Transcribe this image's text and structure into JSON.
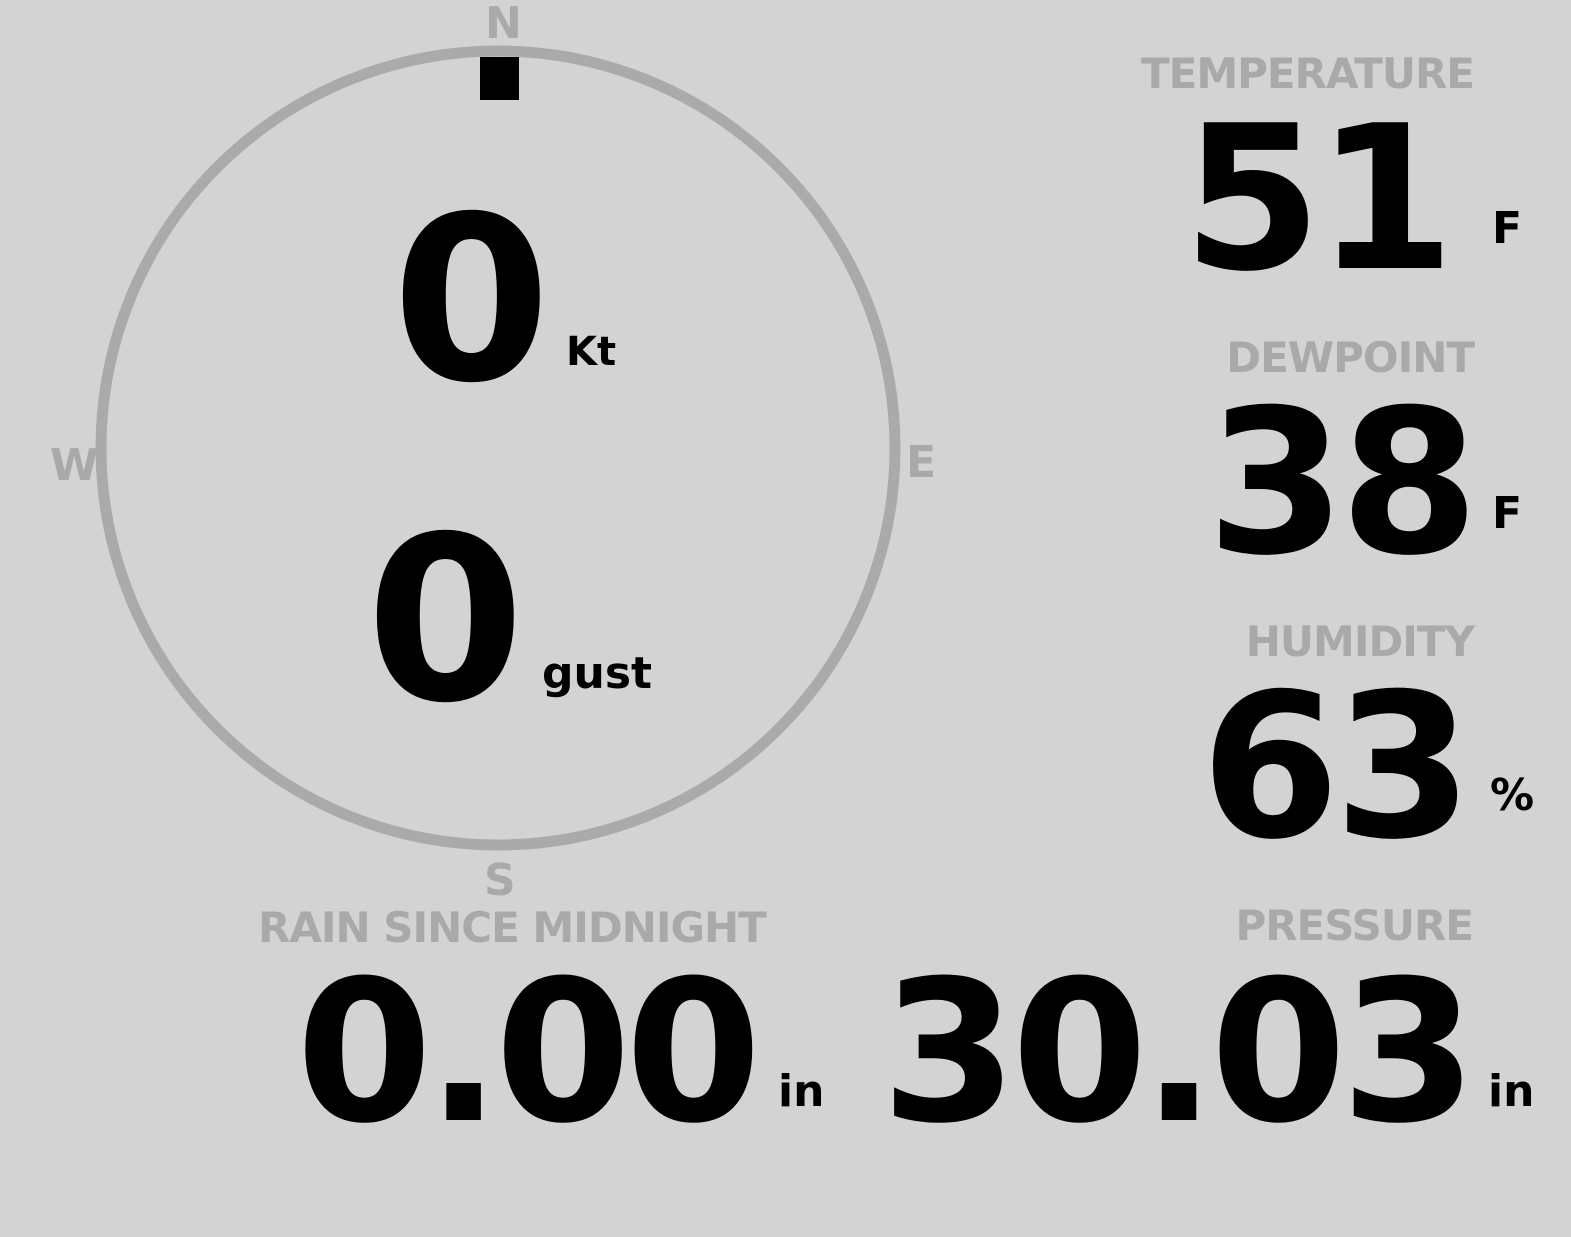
{
  "compass": {
    "north": "N",
    "south": "S",
    "east": "E",
    "west": "W",
    "wind_direction_deg": 0,
    "ring_color": "#aaaaaa",
    "marker_color": "#000000"
  },
  "wind": {
    "speed": "0",
    "speed_unit": "Kt",
    "gust": "0",
    "gust_unit": "gust"
  },
  "temperature": {
    "label": "TEMPERATURE",
    "value": "51",
    "unit": "F"
  },
  "dewpoint": {
    "label": "DEWPOINT",
    "value": "38",
    "unit": "F"
  },
  "humidity": {
    "label": "HUMIDITY",
    "value": "63",
    "unit": "%"
  },
  "rain": {
    "label": "RAIN SINCE MIDNIGHT",
    "value": "0.00",
    "unit": "in"
  },
  "pressure": {
    "label": "PRESSURE",
    "value": "30.03",
    "unit": "in"
  }
}
